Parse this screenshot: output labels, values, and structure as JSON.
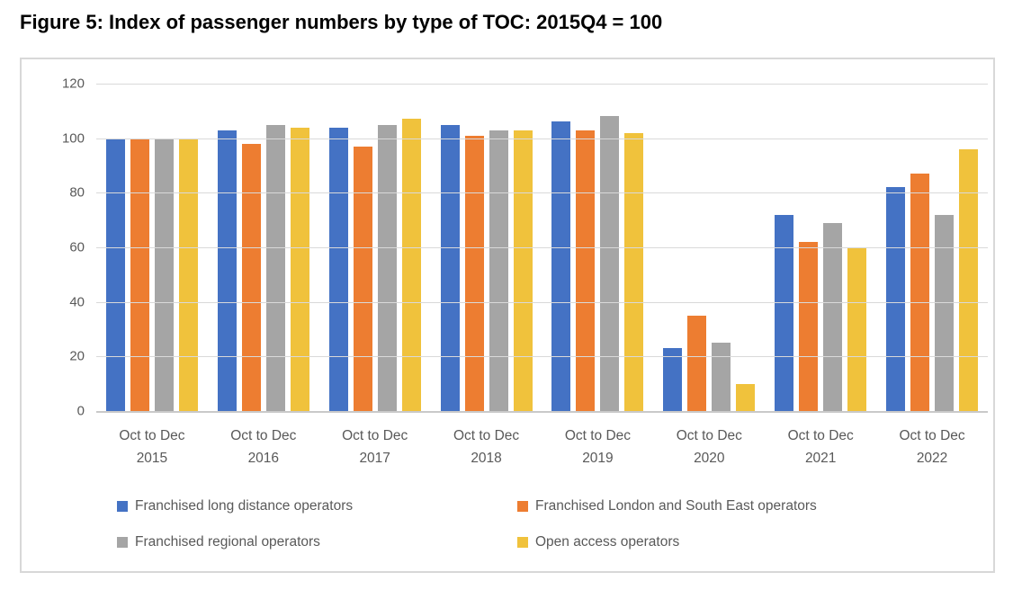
{
  "title": "Figure 5: Index of passenger numbers by type of TOC: 2015Q4 = 100",
  "chart_data": {
    "type": "bar",
    "title": "Figure 5: Index of passenger numbers by type of TOC: 2015Q4 = 100",
    "x_tick_labels": [
      [
        "Oct to Dec",
        "2015"
      ],
      [
        "Oct to Dec",
        "2016"
      ],
      [
        "Oct to Dec",
        "2017"
      ],
      [
        "Oct to Dec",
        "2018"
      ],
      [
        "Oct to Dec",
        "2019"
      ],
      [
        "Oct to Dec",
        "2020"
      ],
      [
        "Oct to Dec",
        "2021"
      ],
      [
        "Oct to Dec",
        "2022"
      ]
    ],
    "series": [
      {
        "name": "Franchised long distance operators",
        "color": "#4472C4",
        "values": [
          100,
          103,
          104,
          105,
          106,
          23,
          72,
          82
        ]
      },
      {
        "name": "Franchised London and South East operators",
        "color": "#ED7D31",
        "values": [
          100,
          98,
          97,
          101,
          103,
          35,
          62,
          87
        ]
      },
      {
        "name": "Franchised regional operators",
        "color": "#A5A5A5",
        "values": [
          100,
          105,
          105,
          103,
          108,
          25,
          69,
          72
        ]
      },
      {
        "name": "Open access operators",
        "color": "#F0C23C",
        "values": [
          100,
          104,
          107,
          103,
          102,
          10,
          60,
          96
        ]
      }
    ],
    "xlabel": "",
    "ylabel": "",
    "y_axis": {
      "min": 0,
      "max": 120,
      "step": 20,
      "ticks": [
        0,
        20,
        40,
        60,
        80,
        100,
        120
      ]
    },
    "grid": true,
    "legend_position": "bottom",
    "colors": {
      "axis_text": "#595959",
      "gridline": "#D9D9D9",
      "panel_border": "#D8D8D8",
      "title_text": "#000000"
    }
  }
}
